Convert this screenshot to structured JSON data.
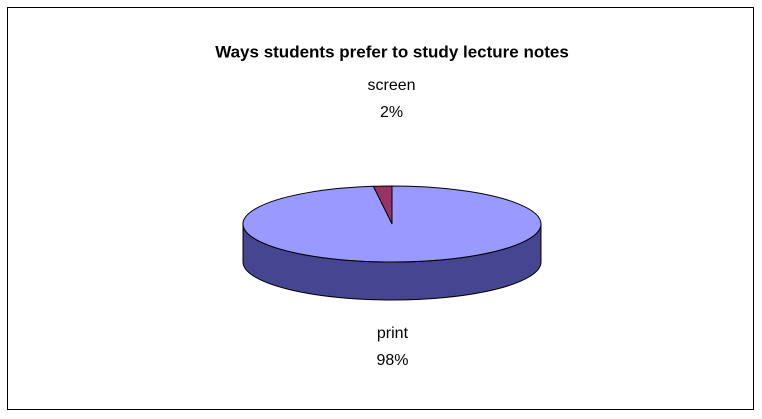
{
  "chart_data": {
    "type": "pie",
    "title": "Ways students prefer to study lecture notes",
    "categories": [
      "screen",
      "print"
    ],
    "values": [
      2,
      98
    ],
    "value_labels": [
      "2%",
      "98%"
    ],
    "colors": [
      "#993366",
      "#9999ff"
    ]
  }
}
